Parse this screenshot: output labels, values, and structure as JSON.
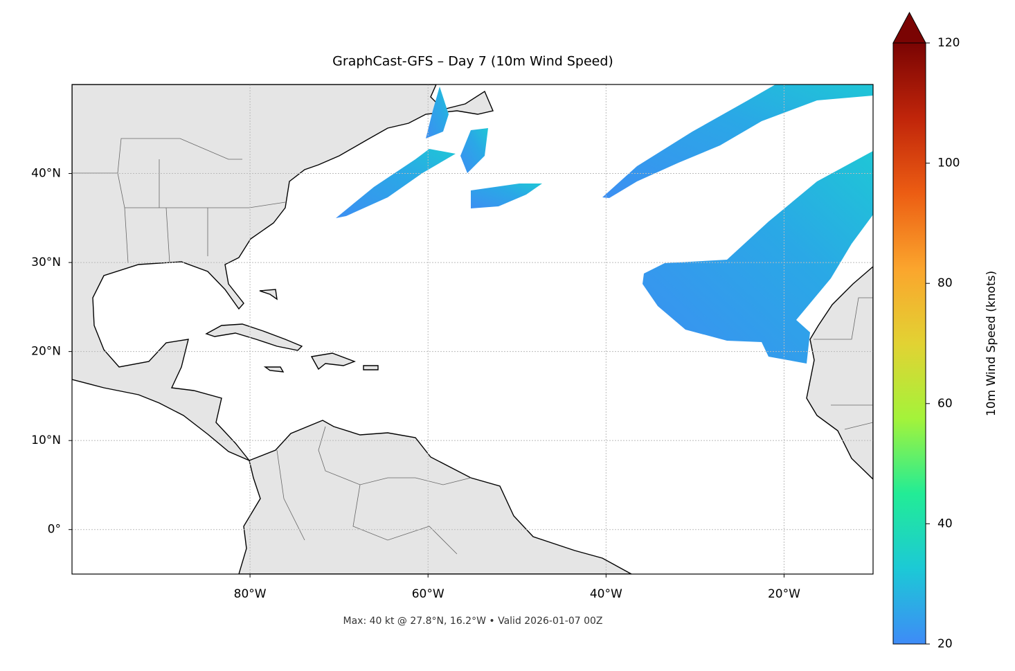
{
  "map": {
    "title": "GraphCast-GFS – Day 7 (10m Wind Speed)",
    "footer": "Max: 40 kt @ 27.8°N, 16.2°W • Valid 2026-01-07 00Z",
    "lon_range": [
      -100,
      -10
    ],
    "lat_range": [
      -5,
      50
    ],
    "lon_ticks": [
      {
        "value": -80,
        "label": "80°W"
      },
      {
        "value": -60,
        "label": "60°W"
      },
      {
        "value": -40,
        "label": "40°W"
      },
      {
        "value": -20,
        "label": "20°W"
      }
    ],
    "lat_ticks": [
      {
        "value": 0,
        "label": "0°"
      },
      {
        "value": 10,
        "label": "10°N"
      },
      {
        "value": 20,
        "label": "20°N"
      },
      {
        "value": 30,
        "label": "30°N"
      },
      {
        "value": 40,
        "label": "40°N"
      }
    ],
    "grid": true,
    "colorbar": {
      "label": "10m Wind Speed (knots)",
      "range": [
        20,
        120
      ],
      "ticks": [
        20,
        40,
        60,
        80,
        100,
        120
      ],
      "colors": [
        "#3e8bf7",
        "#1cc9d6",
        "#22ec96",
        "#a4f33a",
        "#e2d233",
        "#fba52d",
        "#ec5d13",
        "#c0250a",
        "#7a0403"
      ]
    }
  }
}
